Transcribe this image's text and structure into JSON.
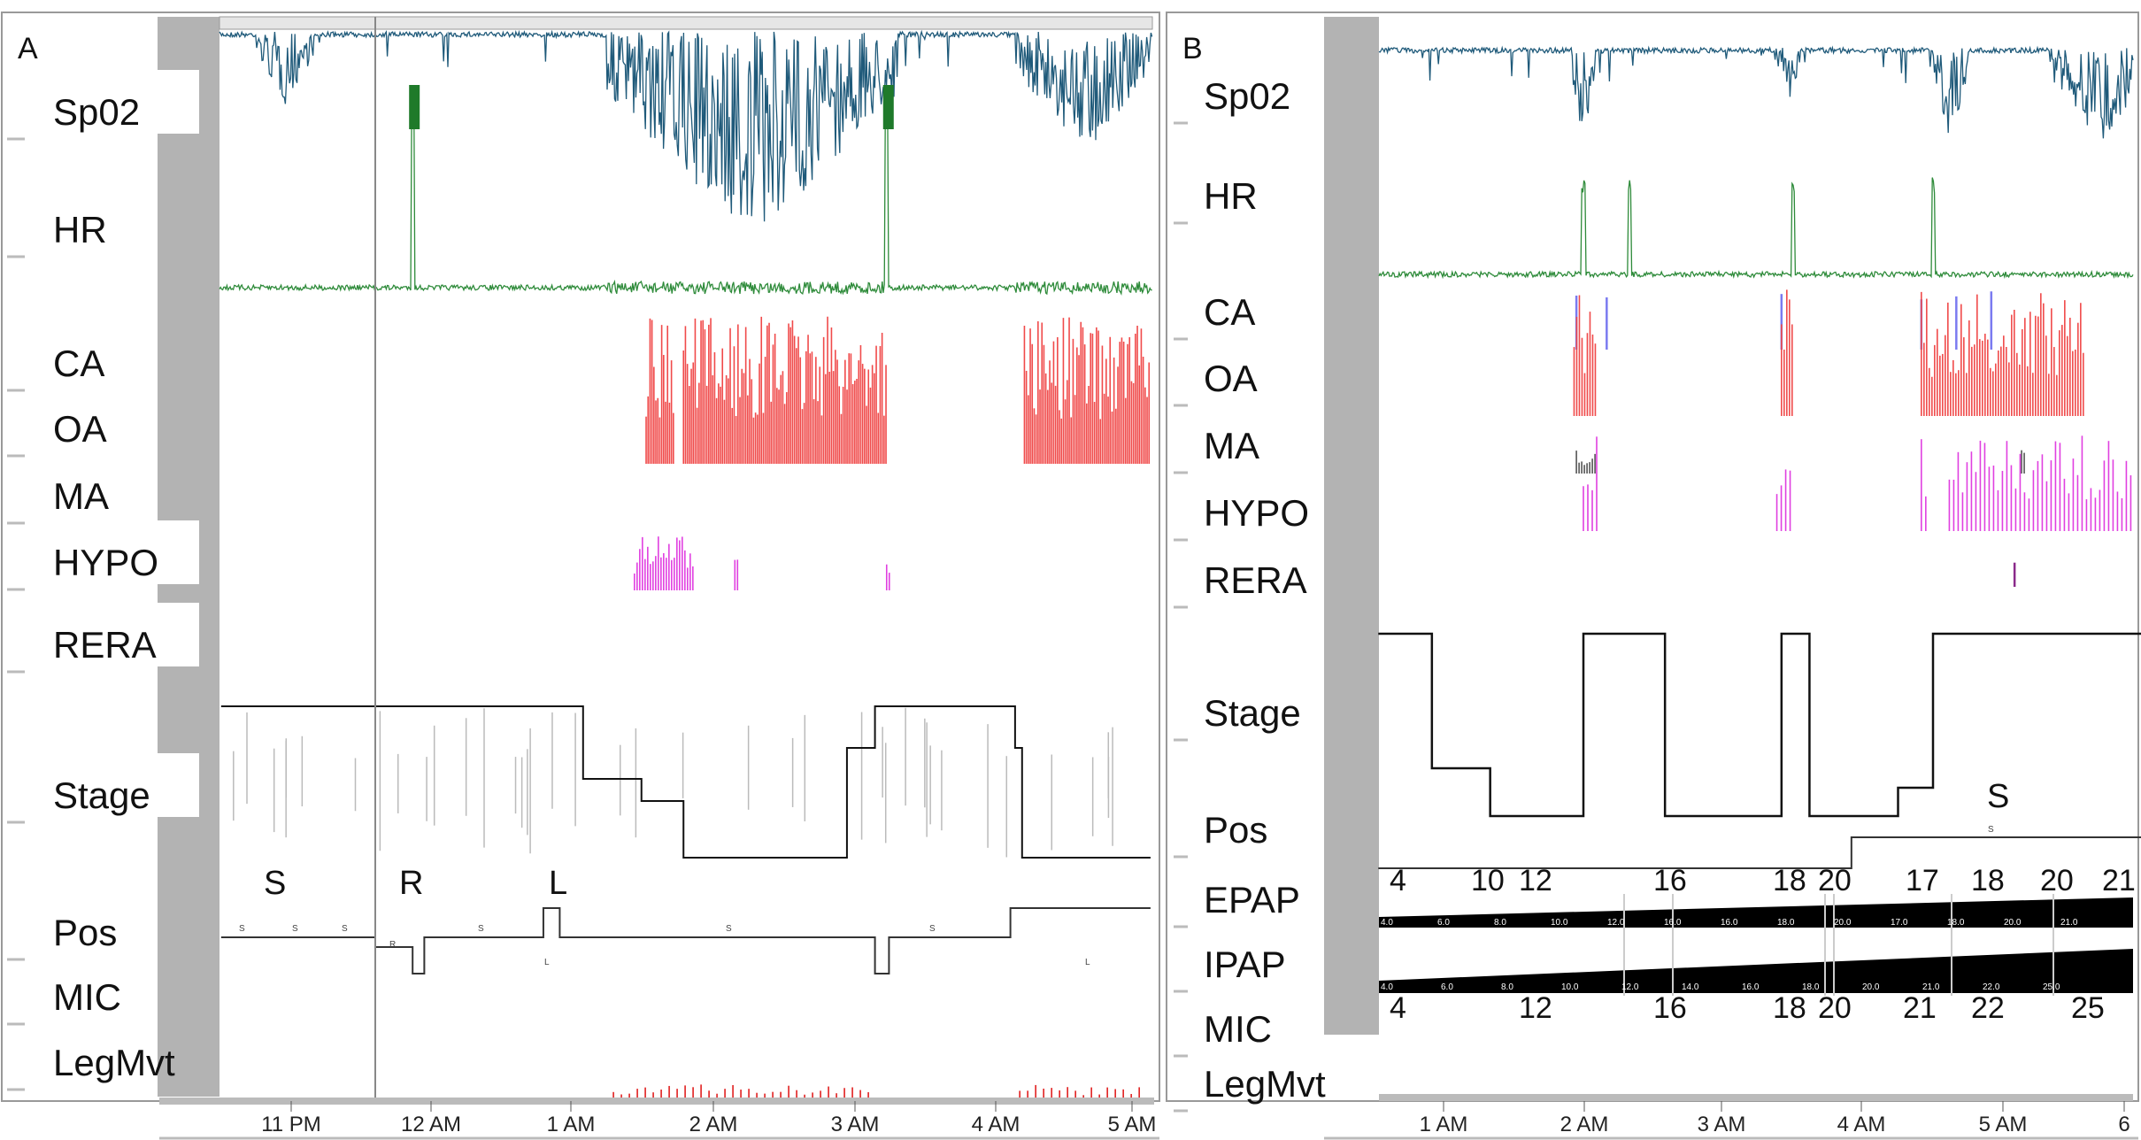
{
  "chart_data": [
    {
      "type": "line",
      "panel": "A",
      "channels": [
        "Sp02",
        "HR",
        "CA",
        "OA",
        "MA",
        "HYPO",
        "RERA",
        "Stage",
        "Pos",
        "MIC",
        "LegMvt"
      ],
      "x_ticks": [
        "11 PM",
        "12 AM",
        "1 AM",
        "2 AM",
        "3 AM",
        "4 AM",
        "5 AM"
      ],
      "x_range": [
        "22:30",
        "05:08"
      ],
      "cursor_time": "23:37",
      "colors": {
        "spo2": "#1f5a7a",
        "hr": "#2e8b3a",
        "oa": "#f04a4a",
        "ca": "#7a7af0",
        "hypo": "#e040e0",
        "stage": "#111111",
        "stage_alt": "#bbbbbb",
        "legmvt": "#e02020"
      },
      "spo2_desaturations": [
        {
          "start": "01:15",
          "end": "03:20",
          "severity": "severe"
        },
        {
          "start": "04:10",
          "end": "05:08",
          "severity": "moderate"
        },
        {
          "start": "22:45",
          "end": "23:10",
          "severity": "mild"
        }
      ],
      "hr_spikes": [
        "23:52",
        "03:15"
      ],
      "hr_irregular": [
        {
          "start": "01:15",
          "end": "03:15"
        },
        {
          "start": "04:10",
          "end": "05:08"
        }
      ],
      "oa_events": [
        {
          "start": "01:32",
          "end": "01:44"
        },
        {
          "start": "01:48",
          "end": "03:15"
        },
        {
          "start": "04:14",
          "end": "05:08"
        }
      ],
      "hypo_events": [
        {
          "start": "01:27",
          "end": "01:53"
        },
        {
          "start": "02:10",
          "end": "02:12"
        },
        {
          "start": "03:15",
          "end": "03:17"
        }
      ],
      "stage_steps": [
        [
          "22:30",
          "W"
        ],
        [
          "01:05",
          "N1"
        ],
        [
          "01:30",
          "N2"
        ],
        [
          "01:48",
          "N3"
        ],
        [
          "02:58",
          "R"
        ],
        [
          "03:10",
          "W"
        ],
        [
          "04:10",
          "R"
        ],
        [
          "04:13",
          "N3"
        ],
        [
          "05:08",
          "N3"
        ]
      ],
      "pos_labels": [
        "S",
        "R",
        "L"
      ],
      "pos_small_labels": [
        "S",
        "S",
        "S",
        "R",
        "S",
        "L",
        "S",
        "S",
        "L"
      ],
      "pos_steps": [
        [
          "22:30",
          "S"
        ],
        [
          "23:36",
          "R"
        ],
        [
          "23:52",
          "dip"
        ],
        [
          "23:57",
          "S"
        ],
        [
          "00:48",
          "L"
        ],
        [
          "00:55",
          "S"
        ],
        [
          "03:10",
          "dip"
        ],
        [
          "03:16",
          "S"
        ],
        [
          "04:08",
          "L"
        ],
        [
          "05:08",
          "L"
        ]
      ],
      "legmvt_events": [
        {
          "start": "01:18",
          "end": "03:10"
        },
        {
          "start": "04:12",
          "end": "05:05"
        }
      ]
    },
    {
      "type": "line",
      "panel": "B",
      "channels": [
        "Sp02",
        "HR",
        "CA",
        "OA",
        "MA",
        "HYPO",
        "RERA",
        "Stage",
        "Pos",
        "EPAP",
        "IPAP",
        "MIC",
        "LegMvt"
      ],
      "x_ticks": [
        "1 AM",
        "2 AM",
        "3 AM",
        "4 AM",
        "5 AM",
        "6"
      ],
      "x_range": [
        "00:32",
        "06:03"
      ],
      "colors": {
        "spo2": "#1f5a7a",
        "hr": "#2e8b3a",
        "oa": "#f04a4a",
        "ca": "#7a7af0",
        "hypo": "#e040e0",
        "ma": "#555555",
        "rera": "#8a2a8a",
        "stage": "#111111",
        "pressure": "#000000"
      },
      "spo2_desaturations": [
        {
          "start": "01:55",
          "end": "02:05",
          "severity": "moderate"
        },
        {
          "start": "03:23",
          "end": "03:33",
          "severity": "mild"
        },
        {
          "start": "04:30",
          "end": "04:45",
          "severity": "moderate"
        },
        {
          "start": "05:20",
          "end": "06:03",
          "severity": "moderate"
        }
      ],
      "hr_spikes": [
        "02:00",
        "02:20",
        "03:30",
        "04:30"
      ],
      "ca_events": [
        "01:57",
        "02:10",
        "03:25",
        "04:25",
        "04:40",
        "04:55"
      ],
      "oa_events": [
        {
          "start": "01:56",
          "end": "02:06"
        },
        {
          "start": "03:25",
          "end": "03:30"
        },
        {
          "start": "04:25",
          "end": "05:35"
        }
      ],
      "ma_events": [
        {
          "start": "01:57",
          "end": "02:06"
        },
        {
          "start": "05:08",
          "end": "05:10"
        }
      ],
      "hypo_events": [
        {
          "start": "02:00",
          "end": "02:06"
        },
        {
          "start": "03:23",
          "end": "03:30"
        },
        {
          "start": "04:25",
          "end": "04:27"
        },
        {
          "start": "04:37",
          "end": "05:55"
        }
      ],
      "rera_events": [
        "05:05"
      ],
      "stage_steps": [
        [
          "00:32",
          "W"
        ],
        [
          "00:55",
          "N1"
        ],
        [
          "01:20",
          "N3"
        ],
        [
          "02:00",
          "W"
        ],
        [
          "02:35",
          "N3"
        ],
        [
          "03:25",
          "W"
        ],
        [
          "03:37",
          "N3"
        ],
        [
          "04:15",
          "N2"
        ],
        [
          "04:30",
          "W"
        ],
        [
          "06:03",
          "W"
        ]
      ],
      "pos_label": "S",
      "pos_small_label": "S",
      "pos_steps": [
        [
          "00:32",
          "low"
        ],
        [
          "03:55",
          "S"
        ],
        [
          "06:03",
          "S"
        ]
      ],
      "epap": {
        "big_labels": [
          "4",
          "10",
          "12",
          "16",
          "18",
          "20",
          "17",
          "18",
          "20",
          "21"
        ],
        "small_labels": [
          "4.0",
          "6.0",
          "8.0",
          "10.0",
          "12.0",
          "16.0",
          "16.0",
          "18.0",
          "20.0",
          "17.0",
          "18.0",
          "20.0",
          "21.0"
        ]
      },
      "ipap": {
        "big_labels": [
          "4",
          "12",
          "16",
          "18",
          "20",
          "21",
          "22",
          "25"
        ],
        "small_labels": [
          "4.0",
          "6.0",
          "8.0",
          "10.0",
          "12.0",
          "14.0",
          "16.0",
          "18.0",
          "20.0",
          "21.0",
          "22.0",
          "25.0"
        ]
      },
      "legmvt_events": []
    }
  ]
}
